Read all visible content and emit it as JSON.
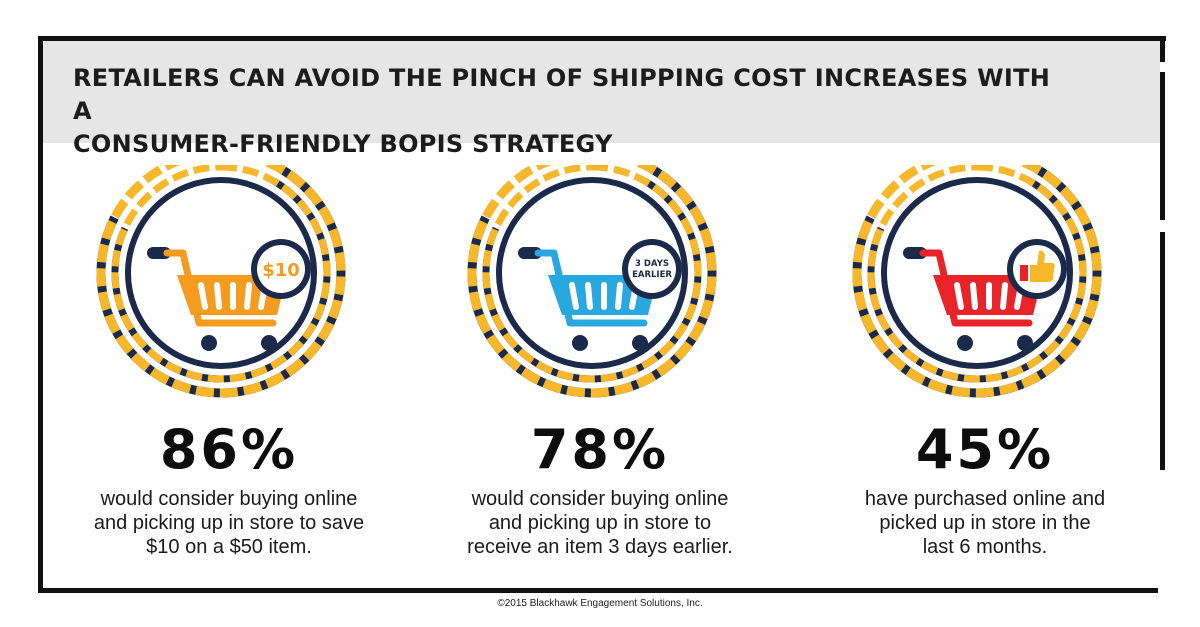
{
  "header": {
    "title_line1": "RETAILERS CAN AVOID THE PINCH OF SHIPPING COST INCREASES WITH A",
    "title_line2": "CONSUMER-FRIENDLY BOPIS STRATEGY"
  },
  "stats": [
    {
      "value": "86%",
      "desc_line1": "would consider buying online",
      "desc_line2": "and picking up in store to save",
      "desc_line3": "$10 on a $50 item.",
      "badge": "$10",
      "cart_color": "#f39c1f",
      "icon": "shopping-cart-icon"
    },
    {
      "value": "78%",
      "desc_line1": "would consider buying online",
      "desc_line2": "and picking up in store to",
      "desc_line3": "receive an item 3 days earlier.",
      "badge_line1": "3 DAYS",
      "badge_line2": "EARLIER",
      "cart_color": "#29a8e0",
      "icon": "shopping-cart-icon"
    },
    {
      "value": "45%",
      "desc_line1": "have purchased online and",
      "desc_line2": "picked up in store in the",
      "desc_line3": "last 6 months.",
      "cart_color": "#e8242a",
      "icon": "shopping-cart-icon",
      "badge_icon": "thumbs-up-icon"
    }
  ],
  "colors": {
    "navy": "#1b2a4a",
    "accent_yellow": "#f6b72b",
    "title_band": "#e6e6e7"
  },
  "footer": {
    "copyright": "©2015 Blackhawk Engagement Solutions, Inc."
  }
}
